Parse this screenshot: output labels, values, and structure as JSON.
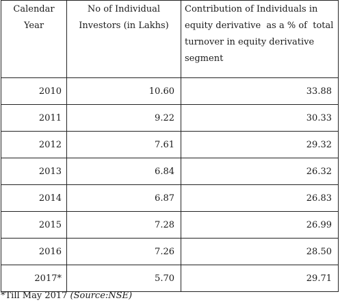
{
  "table": {
    "headers": {
      "year_line1": "Calendar",
      "year_line2": "Year",
      "investors_line1": "No of Individual",
      "investors_line2": "Investors (in Lakhs)",
      "contrib_line1": "Contribution of Individuals in",
      "contrib_line2": "equity derivative  as a % of  total",
      "contrib_line3": "turnover in equity derivative",
      "contrib_line4": "segment"
    },
    "rows": [
      {
        "year": "2010",
        "investors": "10.60",
        "contribution": "33.88"
      },
      {
        "year": "2011",
        "investors": "9.22",
        "contribution": "30.33"
      },
      {
        "year": "2012",
        "investors": "7.61",
        "contribution": "29.32"
      },
      {
        "year": "2013",
        "investors": "6.84",
        "contribution": "26.32"
      },
      {
        "year": "2014",
        "investors": "6.87",
        "contribution": "26.83"
      },
      {
        "year": "2015",
        "investors": "7.28",
        "contribution": "26.99"
      },
      {
        "year": "2016",
        "investors": "7.26",
        "contribution": "28.50"
      },
      {
        "year": "2017*",
        "investors": "5.70",
        "contribution": "29.71"
      }
    ]
  },
  "footnote": {
    "text": "*Till May 2017 ",
    "source": "(Source:NSE)"
  }
}
